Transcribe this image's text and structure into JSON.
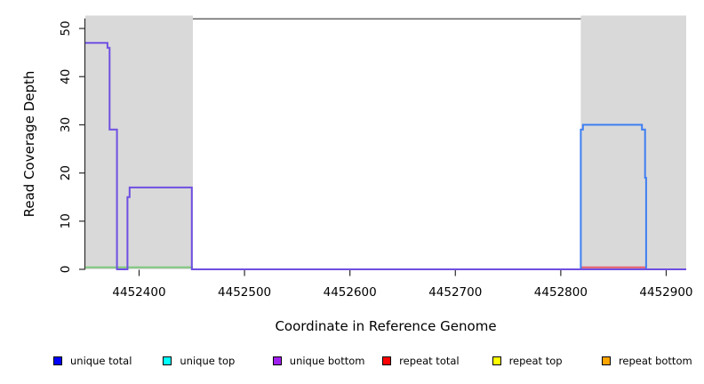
{
  "chart_data": {
    "type": "line",
    "style": "step",
    "title": "",
    "xlabel": "Coordinate in Reference Genome",
    "ylabel": "Read Coverage Depth",
    "xlim": [
      4452349,
      4452919
    ],
    "ylim": [
      0,
      52
    ],
    "x_ticks": [
      4452400,
      4452500,
      4452600,
      4452700,
      4452800,
      4452900
    ],
    "y_ticks": [
      0,
      10,
      20,
      30,
      40,
      50
    ],
    "grid": false,
    "top_border_value": 52,
    "legend_position": "bottom",
    "shaded_regions": [
      {
        "name": "repeat-region-left",
        "x0": 4452349,
        "x1": 4452451,
        "color": "#d9d9d9"
      },
      {
        "name": "repeat-region-right",
        "x0": 4452819,
        "x1": 4452919,
        "color": "#d9d9d9"
      }
    ],
    "series": [
      {
        "name": "unique top",
        "color": "#7cc87c",
        "points": [
          [
            4452349,
            0
          ],
          [
            4452451,
            0
          ]
        ]
      },
      {
        "name": "repeat total",
        "color": "#e25c6e",
        "points": [
          [
            4452819,
            0
          ],
          [
            4452881,
            0
          ]
        ]
      },
      {
        "name": "unique total",
        "color": "#3e7ef2",
        "points": [
          [
            4452819,
            0
          ],
          [
            4452819,
            29
          ],
          [
            4452821,
            29
          ],
          [
            4452821,
            30
          ],
          [
            4452877,
            30
          ],
          [
            4452877,
            29
          ],
          [
            4452880,
            29
          ],
          [
            4452880,
            19
          ],
          [
            4452881,
            19
          ],
          [
            4452881,
            0
          ],
          [
            4452919,
            0
          ]
        ]
      },
      {
        "name": "unique bottom",
        "color": "#6f4fe2",
        "points": [
          [
            4452349,
            47
          ],
          [
            4452370,
            47
          ],
          [
            4452370,
            46
          ],
          [
            4452372,
            46
          ],
          [
            4452372,
            29
          ],
          [
            4452379,
            29
          ],
          [
            4452379,
            0
          ],
          [
            4452389,
            0
          ],
          [
            4452389,
            15
          ],
          [
            4452391,
            15
          ],
          [
            4452391,
            17
          ],
          [
            4452450,
            17
          ],
          [
            4452450,
            0
          ],
          [
            4452919,
            0
          ]
        ]
      }
    ],
    "legend": [
      {
        "label": "unique total",
        "color": "#0000ff"
      },
      {
        "label": "unique top",
        "color": "#00ffff"
      },
      {
        "label": "unique bottom",
        "color": "#a020f0"
      },
      {
        "label": "repeat total",
        "color": "#ff0000"
      },
      {
        "label": "repeat top",
        "color": "#ffff00"
      },
      {
        "label": "repeat bottom",
        "color": "#ffa500"
      }
    ]
  },
  "colors": {
    "background": "#ffffff",
    "shaded_region": "#d9d9d9",
    "axis": "#2b2b2b",
    "top_border": "#5a5a5a"
  }
}
